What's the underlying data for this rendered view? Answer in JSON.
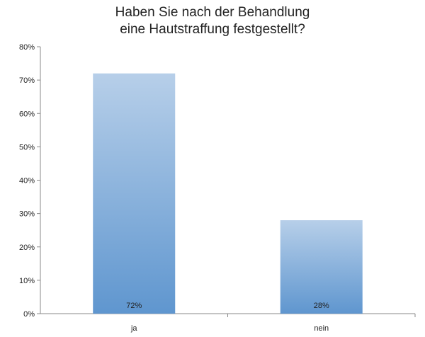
{
  "chart_data": {
    "type": "bar",
    "title_lines": [
      "Haben Sie nach der Behandlung",
      "eine Hautstraffung festgestellt?"
    ],
    "categories": [
      "ja",
      "nein"
    ],
    "values": [
      72,
      28
    ],
    "data_labels": [
      "72%",
      "28%"
    ],
    "yticks": [
      "0%",
      "10%",
      "20%",
      "30%",
      "40%",
      "50%",
      "60%",
      "70%",
      "80%"
    ],
    "ylim": [
      0,
      80
    ],
    "grid": false,
    "legend": "none",
    "colors": {
      "bar_top": "#b7cfe9",
      "bar_bottom": "#5f96cf",
      "axis": "#888888"
    }
  }
}
